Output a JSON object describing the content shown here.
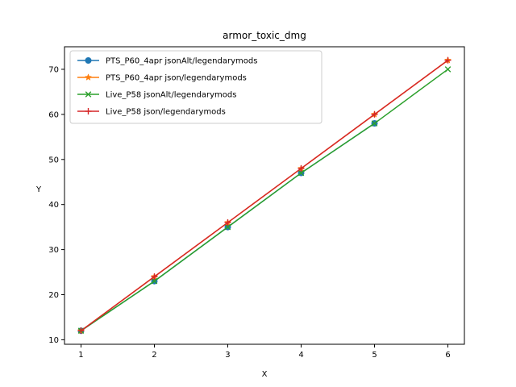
{
  "chart_data": {
    "type": "line",
    "title": "armor_toxic_dmg",
    "xlabel": "X",
    "ylabel": "Y",
    "xlim": [
      0.775,
      6.225
    ],
    "ylim": [
      9.0,
      75.0
    ],
    "xticks": [
      1,
      2,
      3,
      4,
      5,
      6
    ],
    "yticks": [
      10,
      20,
      30,
      40,
      50,
      60,
      70
    ],
    "grid": false,
    "legend_position": "top-left",
    "series": [
      {
        "name": "PTS_P60_4apr jsonAlt/legendarymods",
        "color": "#1f77b4",
        "marker": "circle",
        "x": [
          1,
          2,
          3,
          4,
          5
        ],
        "y": [
          12,
          23,
          35,
          47,
          58
        ]
      },
      {
        "name": "PTS_P60_4apr json/legendarymods",
        "color": "#ff7f0e",
        "marker": "star",
        "x": [
          1,
          2,
          3,
          4,
          5,
          6
        ],
        "y": [
          12,
          24,
          36,
          48,
          60,
          72
        ]
      },
      {
        "name": "Live_P58 jsonAlt/legendarymods",
        "color": "#2ca02c",
        "marker": "x",
        "x": [
          1,
          2,
          3,
          4,
          5,
          6
        ],
        "y": [
          12,
          23,
          35,
          47,
          58,
          70
        ]
      },
      {
        "name": "Live_P58 json/legendarymods",
        "color": "#d62728",
        "marker": "plus",
        "x": [
          1,
          2,
          3,
          4,
          5,
          6
        ],
        "y": [
          12,
          24,
          36,
          48,
          60,
          72
        ]
      }
    ]
  }
}
